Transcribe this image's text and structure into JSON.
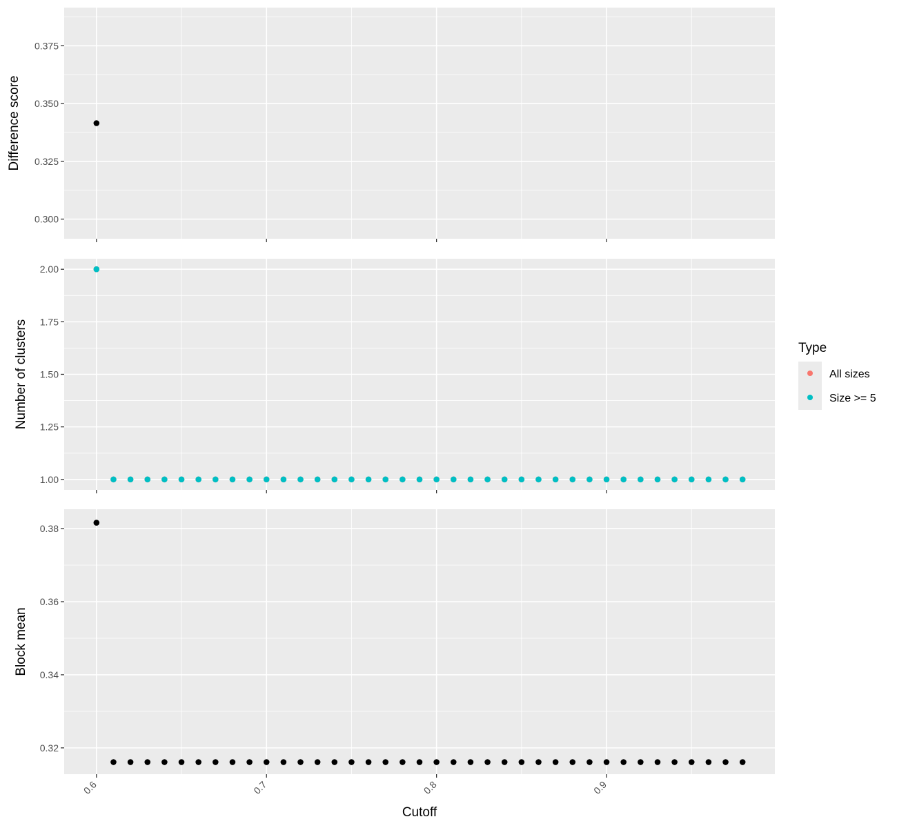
{
  "chart_data": {
    "type": "scatter",
    "xlabel": "Cutoff",
    "x_ticks": [
      0.6,
      0.7,
      0.8,
      0.9
    ],
    "x_tick_labels": [
      "0.6",
      "0.7",
      "0.8",
      "0.9"
    ],
    "xlim": [
      0.581,
      0.999
    ],
    "legend": {
      "title": "Type",
      "position": "right",
      "entries": [
        {
          "label": "All sizes",
          "color": "#F8766D"
        },
        {
          "label": "Size >= 5",
          "color": "#00BFC4"
        }
      ]
    },
    "panels": [
      {
        "ylabel": "Difference score",
        "ylim": [
          0.2915,
          0.3915
        ],
        "y_ticks": [
          0.3,
          0.325,
          0.35,
          0.375
        ],
        "y_tick_labels": [
          "0.300",
          "0.325",
          "0.350",
          "0.375"
        ],
        "series": [
          {
            "color": "#000000",
            "points": [
              [
                0.6,
                0.3415
              ]
            ]
          }
        ]
      },
      {
        "ylabel": "Number of clusters",
        "ylim": [
          0.95,
          2.05
        ],
        "y_ticks": [
          1.0,
          1.25,
          1.5,
          1.75,
          2.0
        ],
        "y_tick_labels": [
          "1.00",
          "1.25",
          "1.50",
          "1.75",
          "2.00"
        ],
        "series": [
          {
            "name": "All sizes",
            "color": "#F8766D",
            "points": [
              [
                0.6,
                2
              ],
              [
                0.61,
                1
              ],
              [
                0.62,
                1
              ],
              [
                0.63,
                1
              ],
              [
                0.64,
                1
              ],
              [
                0.65,
                1
              ],
              [
                0.66,
                1
              ],
              [
                0.67,
                1
              ],
              [
                0.68,
                1
              ],
              [
                0.69,
                1
              ],
              [
                0.7,
                1
              ],
              [
                0.71,
                1
              ],
              [
                0.72,
                1
              ],
              [
                0.73,
                1
              ],
              [
                0.74,
                1
              ],
              [
                0.75,
                1
              ],
              [
                0.76,
                1
              ],
              [
                0.77,
                1
              ],
              [
                0.78,
                1
              ],
              [
                0.79,
                1
              ],
              [
                0.8,
                1
              ],
              [
                0.81,
                1
              ],
              [
                0.82,
                1
              ],
              [
                0.83,
                1
              ],
              [
                0.84,
                1
              ],
              [
                0.85,
                1
              ],
              [
                0.86,
                1
              ],
              [
                0.87,
                1
              ],
              [
                0.88,
                1
              ],
              [
                0.89,
                1
              ],
              [
                0.9,
                1
              ],
              [
                0.91,
                1
              ],
              [
                0.92,
                1
              ],
              [
                0.93,
                1
              ],
              [
                0.94,
                1
              ],
              [
                0.95,
                1
              ],
              [
                0.96,
                1
              ],
              [
                0.97,
                1
              ],
              [
                0.98,
                1
              ]
            ]
          },
          {
            "name": "Size >= 5",
            "color": "#00BFC4",
            "points": [
              [
                0.6,
                2
              ],
              [
                0.61,
                1
              ],
              [
                0.62,
                1
              ],
              [
                0.63,
                1
              ],
              [
                0.64,
                1
              ],
              [
                0.65,
                1
              ],
              [
                0.66,
                1
              ],
              [
                0.67,
                1
              ],
              [
                0.68,
                1
              ],
              [
                0.69,
                1
              ],
              [
                0.7,
                1
              ],
              [
                0.71,
                1
              ],
              [
                0.72,
                1
              ],
              [
                0.73,
                1
              ],
              [
                0.74,
                1
              ],
              [
                0.75,
                1
              ],
              [
                0.76,
                1
              ],
              [
                0.77,
                1
              ],
              [
                0.78,
                1
              ],
              [
                0.79,
                1
              ],
              [
                0.8,
                1
              ],
              [
                0.81,
                1
              ],
              [
                0.82,
                1
              ],
              [
                0.83,
                1
              ],
              [
                0.84,
                1
              ],
              [
                0.85,
                1
              ],
              [
                0.86,
                1
              ],
              [
                0.87,
                1
              ],
              [
                0.88,
                1
              ],
              [
                0.89,
                1
              ],
              [
                0.9,
                1
              ],
              [
                0.91,
                1
              ],
              [
                0.92,
                1
              ],
              [
                0.93,
                1
              ],
              [
                0.94,
                1
              ],
              [
                0.95,
                1
              ],
              [
                0.96,
                1
              ],
              [
                0.97,
                1
              ],
              [
                0.98,
                1
              ]
            ]
          }
        ]
      },
      {
        "ylabel": "Block mean",
        "ylim": [
          0.3128,
          0.3853
        ],
        "y_ticks": [
          0.32,
          0.34,
          0.36,
          0.38
        ],
        "y_tick_labels": [
          "0.32",
          "0.34",
          "0.36",
          "0.38"
        ],
        "series": [
          {
            "color": "#000000",
            "points": [
              [
                0.6,
                0.3816
              ],
              [
                0.61,
                0.3161
              ],
              [
                0.62,
                0.3161
              ],
              [
                0.63,
                0.3161
              ],
              [
                0.64,
                0.3161
              ],
              [
                0.65,
                0.3161
              ],
              [
                0.66,
                0.3161
              ],
              [
                0.67,
                0.3161
              ],
              [
                0.68,
                0.3161
              ],
              [
                0.69,
                0.3161
              ],
              [
                0.7,
                0.3161
              ],
              [
                0.71,
                0.3161
              ],
              [
                0.72,
                0.3161
              ],
              [
                0.73,
                0.3161
              ],
              [
                0.74,
                0.3161
              ],
              [
                0.75,
                0.3161
              ],
              [
                0.76,
                0.3161
              ],
              [
                0.77,
                0.3161
              ],
              [
                0.78,
                0.3161
              ],
              [
                0.79,
                0.3161
              ],
              [
                0.8,
                0.3161
              ],
              [
                0.81,
                0.3161
              ],
              [
                0.82,
                0.3161
              ],
              [
                0.83,
                0.3161
              ],
              [
                0.84,
                0.3161
              ],
              [
                0.85,
                0.3161
              ],
              [
                0.86,
                0.3161
              ],
              [
                0.87,
                0.3161
              ],
              [
                0.88,
                0.3161
              ],
              [
                0.89,
                0.3161
              ],
              [
                0.9,
                0.3161
              ],
              [
                0.91,
                0.3161
              ],
              [
                0.92,
                0.3161
              ],
              [
                0.93,
                0.3161
              ],
              [
                0.94,
                0.3161
              ],
              [
                0.95,
                0.3161
              ],
              [
                0.96,
                0.3161
              ],
              [
                0.97,
                0.3161
              ],
              [
                0.98,
                0.3161
              ]
            ]
          }
        ]
      }
    ]
  }
}
